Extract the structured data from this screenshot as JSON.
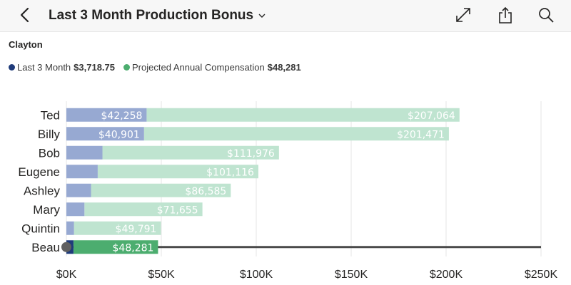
{
  "header": {
    "title": "Last 3 Month Production Bonus",
    "back_icon": "chevron-left-icon",
    "dropdown_icon": "chevron-down-icon",
    "expand_icon": "expand-icon",
    "share_icon": "share-icon",
    "search_icon": "search-icon"
  },
  "subtitle": "Clayton",
  "legend": [
    {
      "label": "Last 3 Month",
      "value": "$3,718.75",
      "color": "#1f3b7a"
    },
    {
      "label": "Projected Annual Compensation",
      "value": "$48,281",
      "color": "#4cad6f"
    }
  ],
  "chart_data": {
    "type": "bar",
    "orientation": "horizontal",
    "categories": [
      "Ted",
      "Billy",
      "Bob",
      "Eugene",
      "Ashley",
      "Mary",
      "Quintin",
      "Beau"
    ],
    "series": [
      {
        "name": "Last 3 Month",
        "values": [
          42258,
          40901,
          19000,
          16500,
          13000,
          9500,
          4000,
          3718.75
        ],
        "labels": [
          "$42,258",
          "$40,901",
          "",
          "",
          "",
          "",
          "",
          ""
        ],
        "color": "#97a9d2",
        "highlight_color": "#1f3b7a"
      },
      {
        "name": "Projected Annual Compensation",
        "values": [
          207064,
          201471,
          111976,
          101116,
          86585,
          71655,
          49791,
          48281
        ],
        "labels": [
          "$207,064",
          "$201,471",
          "$111,976",
          "$101,116",
          "$86,585",
          "$71,655",
          "$49,791",
          "$48,281"
        ],
        "color": "#bfe4d0",
        "highlight_color": "#4cad6f"
      }
    ],
    "highlighted_category": "Beau",
    "xlim": [
      0,
      250000
    ],
    "xticks": [
      0,
      50000,
      100000,
      150000,
      200000,
      250000
    ],
    "xtick_labels": [
      "$0K",
      "$50K",
      "$100K",
      "$150K",
      "$200K",
      "$250K"
    ],
    "grid": true,
    "legend_position": "top-left"
  }
}
